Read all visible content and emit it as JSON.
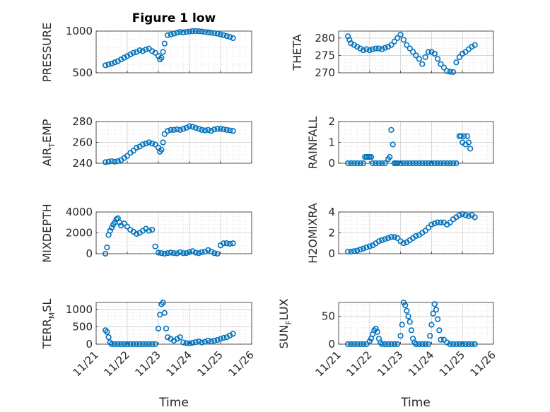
{
  "figure": {
    "title": "Figure 1 low"
  },
  "chart_data": [
    {
      "type": "scatter",
      "ylabel": "PRESSURE",
      "ylim": [
        500,
        1000
      ],
      "yticks": [
        500,
        1000
      ],
      "xlim": [
        0,
        5
      ],
      "grid": true,
      "marker_color": "#0072BD",
      "x": [
        0.3,
        0.4,
        0.5,
        0.6,
        0.7,
        0.8,
        0.9,
        1.0,
        1.1,
        1.2,
        1.3,
        1.4,
        1.5,
        1.6,
        1.7,
        1.8,
        1.9,
        2.0,
        2.05,
        2.1,
        2.15,
        2.2,
        2.3,
        2.4,
        2.5,
        2.6,
        2.7,
        2.8,
        2.9,
        3.0,
        3.1,
        3.2,
        3.3,
        3.4,
        3.5,
        3.6,
        3.7,
        3.8,
        3.9,
        4.0,
        4.1,
        4.2,
        4.3,
        4.4
      ],
      "y": [
        590,
        600,
        610,
        625,
        640,
        660,
        680,
        700,
        720,
        740,
        750,
        770,
        760,
        780,
        790,
        760,
        740,
        700,
        660,
        680,
        750,
        850,
        950,
        960,
        970,
        980,
        990,
        985,
        990,
        995,
        1000,
        1000,
        998,
        995,
        990,
        985,
        980,
        975,
        970,
        960,
        950,
        940,
        930,
        915
      ]
    },
    {
      "type": "scatter",
      "ylabel": "THETA",
      "ylim": [
        270,
        282
      ],
      "yticks": [
        270,
        275,
        280
      ],
      "xlim": [
        0,
        5
      ],
      "grid": true,
      "marker_color": "#0072BD",
      "x": [
        0.3,
        0.35,
        0.4,
        0.5,
        0.6,
        0.7,
        0.8,
        0.9,
        1.0,
        1.1,
        1.2,
        1.3,
        1.4,
        1.5,
        1.6,
        1.7,
        1.8,
        1.9,
        2.0,
        2.1,
        2.2,
        2.3,
        2.4,
        2.5,
        2.6,
        2.7,
        2.8,
        2.9,
        3.0,
        3.1,
        3.2,
        3.3,
        3.4,
        3.5,
        3.6,
        3.7,
        3.8,
        3.9,
        4.0,
        4.1,
        4.2,
        4.3,
        4.4
      ],
      "y": [
        280.5,
        279.5,
        278.5,
        278,
        277.5,
        277,
        276.5,
        276.8,
        276.5,
        276.8,
        277,
        277,
        276.8,
        277.2,
        277.5,
        278,
        279,
        280,
        281,
        279.5,
        278,
        277,
        276,
        275,
        274,
        272.5,
        274.5,
        276,
        276,
        275.5,
        274,
        272.5,
        271.5,
        270.5,
        270.3,
        270.2,
        273,
        274.5,
        275.5,
        276,
        276.8,
        277.5,
        278
      ]
    },
    {
      "type": "scatter",
      "ylabel": "AIR_TEMP",
      "ylim": [
        240,
        280
      ],
      "yticks": [
        240,
        260,
        280
      ],
      "xlim": [
        0,
        5
      ],
      "grid": true,
      "marker_color": "#0072BD",
      "x": [
        0.3,
        0.4,
        0.5,
        0.6,
        0.7,
        0.8,
        0.9,
        1.0,
        1.1,
        1.2,
        1.3,
        1.4,
        1.5,
        1.6,
        1.7,
        1.8,
        1.9,
        2.0,
        2.05,
        2.1,
        2.15,
        2.2,
        2.3,
        2.4,
        2.5,
        2.6,
        2.7,
        2.8,
        2.9,
        3.0,
        3.1,
        3.2,
        3.3,
        3.4,
        3.5,
        3.6,
        3.7,
        3.8,
        3.9,
        4.0,
        4.1,
        4.2,
        4.3,
        4.4
      ],
      "y": [
        241,
        241.5,
        242,
        241.5,
        242,
        243,
        245,
        247,
        250,
        252,
        255,
        256,
        258,
        259,
        260,
        259,
        258,
        255,
        251,
        253,
        260,
        268,
        271,
        272,
        272,
        272.5,
        272,
        273,
        274,
        275.5,
        275,
        274,
        273,
        272,
        271.5,
        272,
        271,
        272.5,
        273,
        273,
        272.5,
        272,
        271.5,
        271
      ]
    },
    {
      "type": "scatter",
      "ylabel": "RAINFALL",
      "ylim": [
        0,
        2
      ],
      "yticks": [
        0,
        1,
        2
      ],
      "xlim": [
        0,
        5
      ],
      "grid": true,
      "marker_color": "#0072BD",
      "x": [
        0.3,
        0.4,
        0.5,
        0.6,
        0.7,
        0.8,
        0.85,
        0.9,
        0.95,
        1.0,
        1.05,
        1.1,
        1.2,
        1.3,
        1.4,
        1.5,
        1.6,
        1.65,
        1.7,
        1.75,
        1.8,
        1.85,
        1.9,
        2.0,
        2.1,
        2.2,
        2.3,
        2.4,
        2.5,
        2.6,
        2.7,
        2.8,
        2.9,
        3.0,
        3.1,
        3.2,
        3.3,
        3.4,
        3.5,
        3.6,
        3.7,
        3.8,
        3.9,
        3.95,
        4.0,
        4.05,
        4.1,
        4.15,
        4.2,
        4.25
      ],
      "y": [
        0,
        0,
        0,
        0,
        0,
        0,
        0.3,
        0.3,
        0.3,
        0.3,
        0.3,
        0,
        0,
        0,
        0,
        0,
        0.2,
        0.3,
        1.6,
        0.9,
        0,
        0,
        0,
        0,
        0,
        0,
        0,
        0,
        0,
        0,
        0,
        0,
        0,
        0,
        0,
        0,
        0,
        0,
        0,
        0,
        0,
        0,
        1.3,
        1.3,
        1.0,
        1.3,
        0.9,
        1.3,
        1.0,
        0.7
      ]
    },
    {
      "type": "scatter",
      "ylabel": "MIXDEPTH",
      "ylim": [
        0,
        4000
      ],
      "yticks": [
        0,
        2000,
        4000
      ],
      "xlim": [
        0,
        5
      ],
      "grid": true,
      "marker_color": "#0072BD",
      "x": [
        0.3,
        0.35,
        0.4,
        0.45,
        0.5,
        0.55,
        0.6,
        0.65,
        0.7,
        0.75,
        0.8,
        0.9,
        1.0,
        1.1,
        1.2,
        1.3,
        1.4,
        1.5,
        1.6,
        1.7,
        1.8,
        1.9,
        2.0,
        2.1,
        2.2,
        2.3,
        2.4,
        2.5,
        2.6,
        2.7,
        2.8,
        2.9,
        3.0,
        3.1,
        3.2,
        3.3,
        3.4,
        3.5,
        3.6,
        3.7,
        3.8,
        3.9,
        4.0,
        4.1,
        4.2,
        4.3,
        4.4
      ],
      "y": [
        0,
        600,
        1800,
        2200,
        2500,
        2800,
        3000,
        3300,
        3400,
        3000,
        2700,
        2900,
        2600,
        2300,
        2100,
        1900,
        2000,
        2200,
        2400,
        2200,
        2300,
        700,
        100,
        50,
        0,
        50,
        100,
        50,
        30,
        150,
        50,
        50,
        150,
        250,
        100,
        50,
        150,
        200,
        350,
        200,
        50,
        0,
        800,
        1000,
        1000,
        950,
        1000
      ]
    },
    {
      "type": "scatter",
      "ylabel": "H2OMIXRA",
      "ylim": [
        0,
        4
      ],
      "yticks": [
        0,
        2,
        4
      ],
      "xlim": [
        0,
        5
      ],
      "grid": true,
      "marker_color": "#0072BD",
      "x": [
        0.3,
        0.4,
        0.5,
        0.6,
        0.7,
        0.8,
        0.9,
        1.0,
        1.1,
        1.2,
        1.3,
        1.4,
        1.5,
        1.6,
        1.7,
        1.8,
        1.9,
        2.0,
        2.1,
        2.2,
        2.3,
        2.4,
        2.5,
        2.6,
        2.7,
        2.8,
        2.9,
        3.0,
        3.1,
        3.2,
        3.3,
        3.4,
        3.5,
        3.6,
        3.7,
        3.8,
        3.9,
        4.0,
        4.1,
        4.2,
        4.3,
        4.4
      ],
      "y": [
        0.2,
        0.2,
        0.25,
        0.3,
        0.4,
        0.5,
        0.6,
        0.7,
        0.8,
        1.0,
        1.2,
        1.3,
        1.4,
        1.5,
        1.6,
        1.6,
        1.5,
        1.2,
        1.0,
        1.1,
        1.3,
        1.5,
        1.7,
        1.8,
        2.0,
        2.2,
        2.5,
        2.8,
        2.9,
        3.0,
        3.0,
        3.0,
        2.8,
        3.0,
        3.3,
        3.5,
        3.7,
        3.8,
        3.7,
        3.6,
        3.7,
        3.5
      ]
    },
    {
      "type": "scatter",
      "ylabel": "TERR_MSL",
      "ylim": [
        0,
        1200
      ],
      "yticks": [
        0,
        500,
        1000
      ],
      "xlim": [
        0,
        5
      ],
      "grid": true,
      "marker_color": "#0072BD",
      "x": [
        0.3,
        0.35,
        0.4,
        0.45,
        0.5,
        0.6,
        0.7,
        0.8,
        0.9,
        1.0,
        1.1,
        1.2,
        1.3,
        1.4,
        1.5,
        1.6,
        1.7,
        1.8,
        1.9,
        2.0,
        2.05,
        2.1,
        2.15,
        2.2,
        2.25,
        2.3,
        2.4,
        2.5,
        2.6,
        2.7,
        2.8,
        2.9,
        3.0,
        3.1,
        3.2,
        3.3,
        3.4,
        3.5,
        3.6,
        3.7,
        3.8,
        3.9,
        4.0,
        4.1,
        4.2,
        4.3,
        4.4
      ],
      "y": [
        400,
        350,
        200,
        50,
        0,
        0,
        0,
        0,
        0,
        0,
        0,
        0,
        0,
        0,
        0,
        0,
        0,
        0,
        0,
        450,
        850,
        1150,
        1200,
        900,
        450,
        200,
        150,
        100,
        150,
        200,
        50,
        30,
        20,
        40,
        60,
        80,
        50,
        70,
        100,
        80,
        100,
        120,
        150,
        180,
        200,
        250,
        300
      ]
    },
    {
      "type": "scatter",
      "ylabel": "SUN_FLUX",
      "ylim": [
        0,
        75
      ],
      "yticks": [
        0,
        50
      ],
      "xlim": [
        0,
        5
      ],
      "grid": true,
      "marker_color": "#0072BD",
      "x": [
        0.3,
        0.4,
        0.5,
        0.6,
        0.7,
        0.8,
        0.9,
        1.0,
        1.05,
        1.1,
        1.15,
        1.2,
        1.25,
        1.3,
        1.35,
        1.4,
        1.5,
        1.6,
        1.7,
        1.8,
        1.9,
        2.0,
        2.05,
        2.1,
        2.15,
        2.2,
        2.25,
        2.3,
        2.35,
        2.4,
        2.45,
        2.5,
        2.6,
        2.7,
        2.8,
        2.9,
        2.95,
        3.0,
        3.05,
        3.1,
        3.15,
        3.2,
        3.25,
        3.3,
        3.4,
        3.5,
        3.6,
        3.7,
        3.8,
        3.9,
        4.0,
        4.1,
        4.2,
        4.3,
        4.4
      ],
      "y": [
        0,
        0,
        0,
        0,
        0,
        0,
        0,
        5,
        10,
        18,
        25,
        28,
        22,
        10,
        3,
        0,
        0,
        0,
        0,
        0,
        0,
        15,
        35,
        75,
        70,
        60,
        50,
        40,
        25,
        10,
        3,
        0,
        0,
        0,
        0,
        0,
        15,
        35,
        55,
        72,
        62,
        45,
        25,
        8,
        8,
        3,
        0,
        0,
        0,
        0,
        0,
        0,
        0,
        0,
        0
      ]
    }
  ],
  "x_axis": {
    "ticklabels": [
      "11/21",
      "11/22",
      "11/23",
      "11/24",
      "11/25",
      "11/26"
    ],
    "xlabel": "Time"
  },
  "labels": {
    "pressure": "PRESSURE",
    "theta": "THETA",
    "air_main": "AIR",
    "air_sub": "T",
    "air_tail": "EMP",
    "rainfall": "RAINFALL",
    "mixdepth": "MIXDEPTH",
    "h2omixra": "H2OMIXRA",
    "terr_main": "TERR",
    "terr_sub": "M",
    "terr_tail": "SL",
    "sun_main": "SUN",
    "sun_sub": "F",
    "sun_tail": "LUX"
  }
}
